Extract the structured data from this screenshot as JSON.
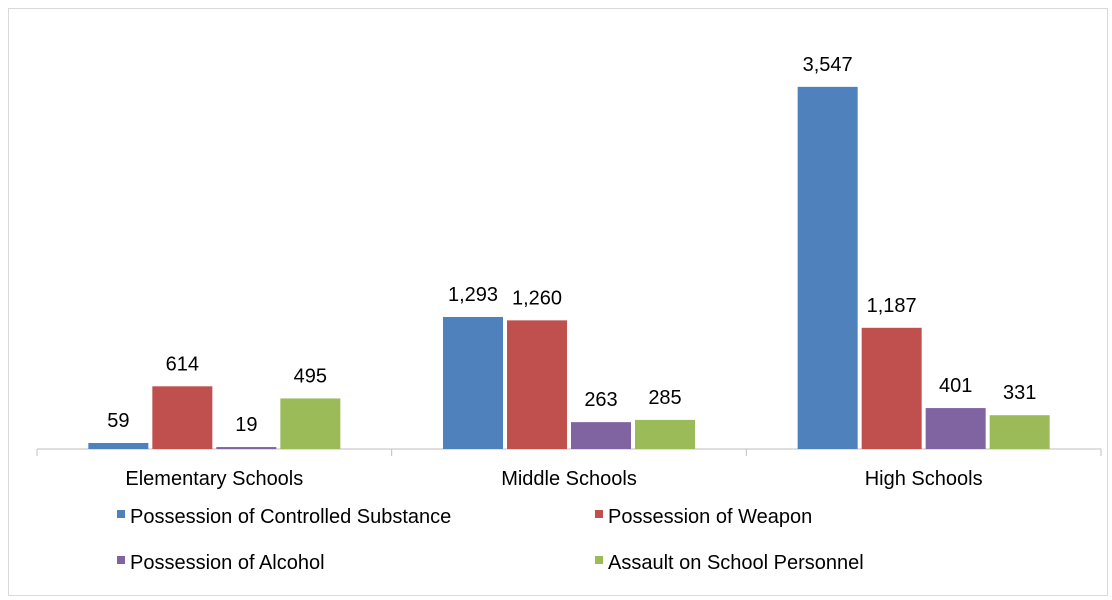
{
  "chart_data": {
    "type": "bar",
    "title": "",
    "xlabel": "",
    "ylabel": "",
    "categories": [
      "Elementary Schools",
      "Middle Schools",
      "High Schools"
    ],
    "series": [
      {
        "name": "Possession of Controlled Substance",
        "color": "#4f81bd",
        "values": [
          59,
          1293,
          3547
        ],
        "labels": [
          "59",
          "1,293",
          "3,547"
        ]
      },
      {
        "name": "Possession of Weapon",
        "color": "#c0504d",
        "values": [
          614,
          1260,
          1187
        ],
        "labels": [
          "614",
          "1,260",
          "1,187"
        ]
      },
      {
        "name": "Possession of Alcohol",
        "color": "#8064a2",
        "values": [
          19,
          263,
          401
        ],
        "labels": [
          "19",
          "263",
          "401"
        ]
      },
      {
        "name": "Assault on School Personnel",
        "color": "#9bbb59",
        "values": [
          495,
          285,
          331
        ],
        "labels": [
          "495",
          "285",
          "331"
        ]
      }
    ],
    "ylim": [
      0,
      4000
    ],
    "grid": false,
    "legend_position": "bottom",
    "axis_color": "#bfbfbf"
  }
}
